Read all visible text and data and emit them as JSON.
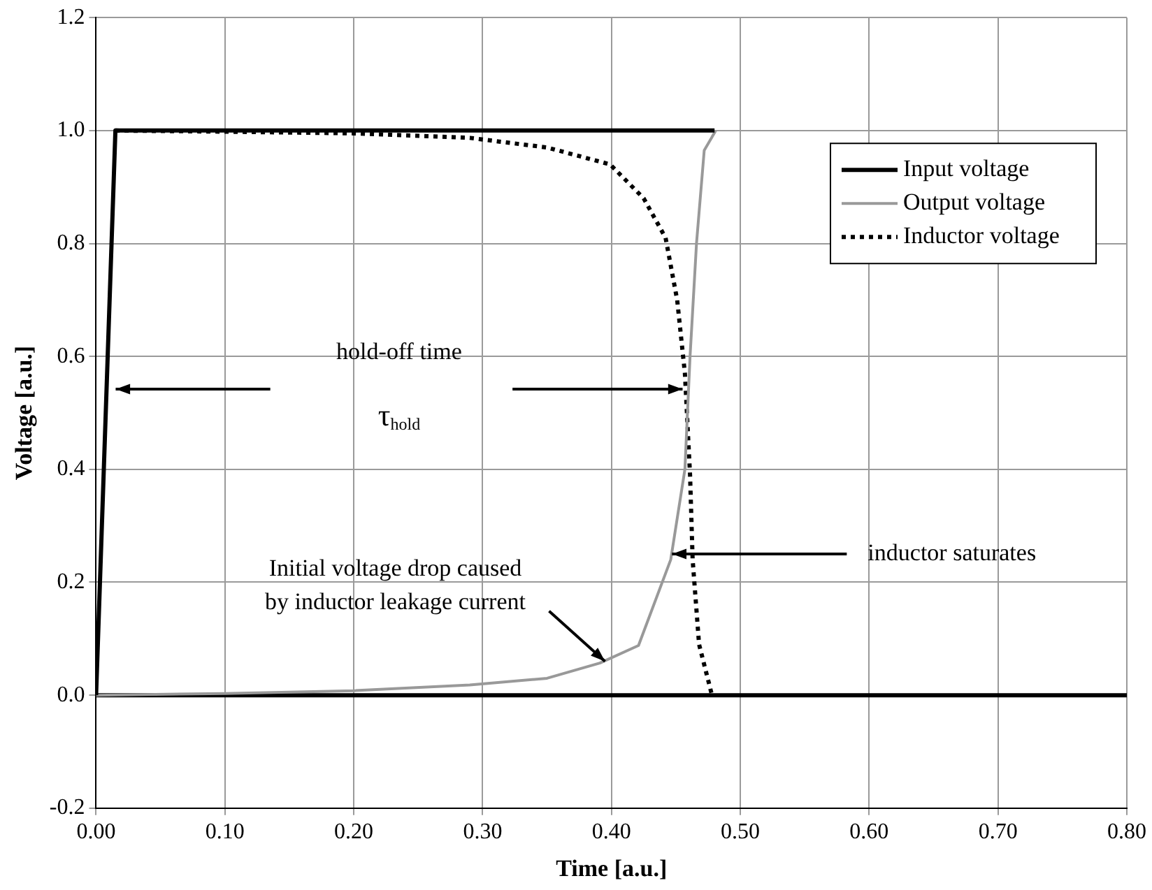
{
  "chart_data": {
    "type": "line",
    "xlabel": "Time [a.u.]",
    "ylabel": "Voltage [a.u.]",
    "xlim": [
      0,
      0.8
    ],
    "ylim": [
      -0.2,
      1.2
    ],
    "xticks": [
      {
        "value": 0,
        "label": "0.00"
      },
      {
        "value": 0.1,
        "label": "0.10"
      },
      {
        "value": 0.2,
        "label": "0.20"
      },
      {
        "value": 0.3,
        "label": "0.30"
      },
      {
        "value": 0.4,
        "label": "0.40"
      },
      {
        "value": 0.5,
        "label": "0.50"
      },
      {
        "value": 0.6,
        "label": "0.60"
      },
      {
        "value": 0.7,
        "label": "0.70"
      },
      {
        "value": 0.8,
        "label": "0.80"
      }
    ],
    "yticks": [
      {
        "value": -0.2,
        "label": "-0.2"
      },
      {
        "value": 0,
        "label": "0.0"
      },
      {
        "value": 0.2,
        "label": "0.2"
      },
      {
        "value": 0.4,
        "label": "0.4"
      },
      {
        "value": 0.6,
        "label": "0.6"
      },
      {
        "value": 0.8,
        "label": "0.8"
      },
      {
        "value": 1,
        "label": "1.0"
      },
      {
        "value": 1.2,
        "label": "1.2"
      }
    ],
    "grid": true,
    "legend": "top right",
    "marker": "none",
    "series": [
      {
        "name": "Input voltage",
        "color": "#000000",
        "line_style": "solid",
        "x": [
          0,
          0.015,
          0.48
        ],
        "values": [
          0,
          1,
          1
        ]
      },
      {
        "name": "Output voltage",
        "color": "#999999",
        "line_style": "solid",
        "x": [
          0,
          0.1,
          0.2,
          0.29,
          0.35,
          0.391,
          0.421,
          0.446,
          0.457,
          0.461,
          0.466,
          0.472,
          0.481
        ],
        "values": [
          0,
          0.003,
          0.008,
          0.018,
          0.03,
          0.057,
          0.088,
          0.24,
          0.4,
          0.6,
          0.8,
          0.965,
          1
        ]
      },
      {
        "name": "Inductor voltage",
        "color": "#000000",
        "line_style": "dotted",
        "x": [
          0.015,
          0.1,
          0.2,
          0.29,
          0.35,
          0.399,
          0.425,
          0.442,
          0.451,
          0.457,
          0.461,
          0.463,
          0.468,
          0.478
        ],
        "values": [
          1,
          0.998,
          0.995,
          0.987,
          0.97,
          0.94,
          0.88,
          0.81,
          0.7,
          0.57,
          0.39,
          0.24,
          0.09,
          0
        ]
      }
    ],
    "ref_lines": [
      {
        "axis": "y",
        "value": 0,
        "color": "#000000"
      }
    ],
    "annotations": [
      "hold-off time",
      "τ$_{hold}$",
      {
        "text": "Initial voltage drop caused\nby inductor leakage current",
        "x": 0.395,
        "y": 0.06
      },
      {
        "text": "inductor saturates",
        "x": 0.447,
        "y": 0.25
      }
    ]
  }
}
